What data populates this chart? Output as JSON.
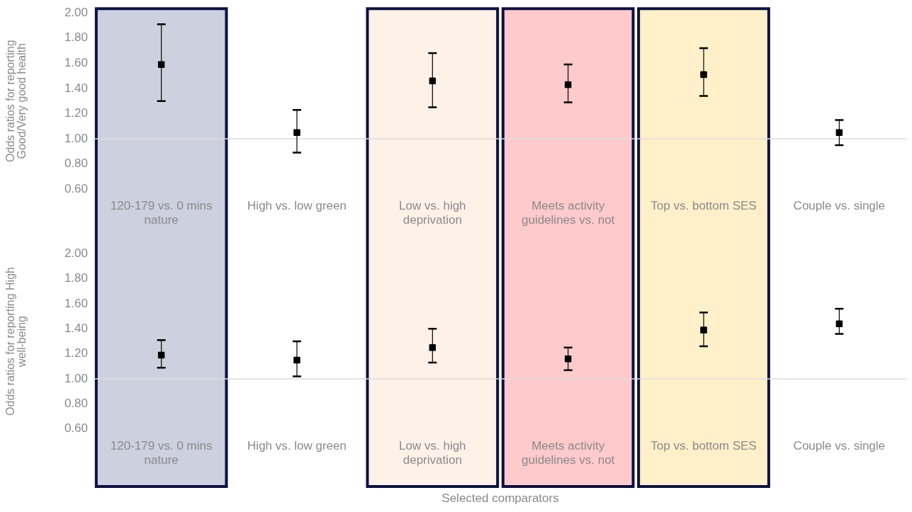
{
  "chart_data": [
    {
      "type": "scatter",
      "ylabel": "Odds ratios for reporting Good/Very good health",
      "categories": [
        "120-179 vs. 0 mins nature",
        "High vs. low green",
        "Low vs. high deprivation",
        "Meets activity guidelines vs. not",
        "Top vs. bottom SES",
        "Couple vs. single"
      ],
      "series": [
        {
          "color": "#000000",
          "values": [
            1.59,
            1.05,
            1.46,
            1.43,
            1.51,
            1.05
          ],
          "errors": [
            [
              1.3,
              1.91
            ],
            [
              0.89,
              1.23
            ],
            [
              1.25,
              1.68
            ],
            [
              1.29,
              1.59
            ],
            [
              1.34,
              1.72
            ],
            [
              0.95,
              1.15
            ]
          ]
        }
      ],
      "ylim": [
        0.6,
        2.0
      ],
      "yticks": [
        {
          "value": 0.6,
          "label": "0.60"
        },
        {
          "value": 0.8,
          "label": "0.80"
        },
        {
          "value": 1.0,
          "label": "1.00"
        },
        {
          "value": 1.2,
          "label": "1.20"
        },
        {
          "value": 1.4,
          "label": "1.40"
        },
        {
          "value": 1.6,
          "label": "1.60"
        },
        {
          "value": 1.8,
          "label": "1.80"
        },
        {
          "value": 2.0,
          "label": "2.00"
        }
      ],
      "ref_lines": [
        {
          "axis": "y",
          "value": 1.0,
          "color": "#dddddd"
        }
      ],
      "bands": [
        {
          "axis": "x",
          "from": "120-179 vs. 0 mins nature",
          "to": "120-179 vs. 0 mins nature",
          "color": "#cdd0de"
        },
        {
          "axis": "x",
          "from": "Low vs. high deprivation",
          "to": "Low vs. high deprivation",
          "color": "#fdf1e8"
        },
        {
          "axis": "x",
          "from": "Meets activity guidelines vs. not",
          "to": "Meets activity guidelines vs. not",
          "color": "#fecacb"
        },
        {
          "axis": "x",
          "from": "Top vs. bottom SES",
          "to": "Top vs. bottom SES",
          "color": "#fff0c9"
        }
      ],
      "marker": "square",
      "grid": false,
      "legend": false
    },
    {
      "type": "scatter",
      "ylabel": "Odds ratios for reporting High well-being",
      "xlabel": "Selected comparators",
      "categories": [
        "120-179 vs. 0 mins nature",
        "High vs. low green",
        "Low vs. high deprivation",
        "Meets activity guidelines vs. not",
        "Top vs. bottom SES",
        "Couple vs. single"
      ],
      "series": [
        {
          "color": "#000000",
          "values": [
            1.19,
            1.15,
            1.25,
            1.16,
            1.39,
            1.44
          ],
          "errors": [
            [
              1.09,
              1.31
            ],
            [
              1.02,
              1.3
            ],
            [
              1.13,
              1.4
            ],
            [
              1.07,
              1.25
            ],
            [
              1.26,
              1.53
            ],
            [
              1.36,
              1.56
            ]
          ]
        }
      ],
      "ylim": [
        0.6,
        2.0
      ],
      "yticks": [
        {
          "value": 0.6,
          "label": "0.60"
        },
        {
          "value": 0.8,
          "label": "0.80"
        },
        {
          "value": 1.0,
          "label": "1.00"
        },
        {
          "value": 1.2,
          "label": "1.20"
        },
        {
          "value": 1.4,
          "label": "1.40"
        },
        {
          "value": 1.6,
          "label": "1.60"
        },
        {
          "value": 1.8,
          "label": "1.80"
        },
        {
          "value": 2.0,
          "label": "2.00"
        }
      ],
      "ref_lines": [
        {
          "axis": "y",
          "value": 1.0,
          "color": "#dddddd"
        }
      ],
      "bands": [
        {
          "axis": "x",
          "from": "120-179 vs. 0 mins nature",
          "to": "120-179 vs. 0 mins nature",
          "color": "#cdd0de"
        },
        {
          "axis": "x",
          "from": "Low vs. high deprivation",
          "to": "Low vs. high deprivation",
          "color": "#fdf1e8"
        },
        {
          "axis": "x",
          "from": "Meets activity guidelines vs. not",
          "to": "Meets activity guidelines vs. not",
          "color": "#fecacb"
        },
        {
          "axis": "x",
          "from": "Top vs. bottom SES",
          "to": "Top vs. bottom SES",
          "color": "#fff0c9"
        }
      ],
      "marker": "square",
      "grid": false,
      "legend": false
    }
  ]
}
